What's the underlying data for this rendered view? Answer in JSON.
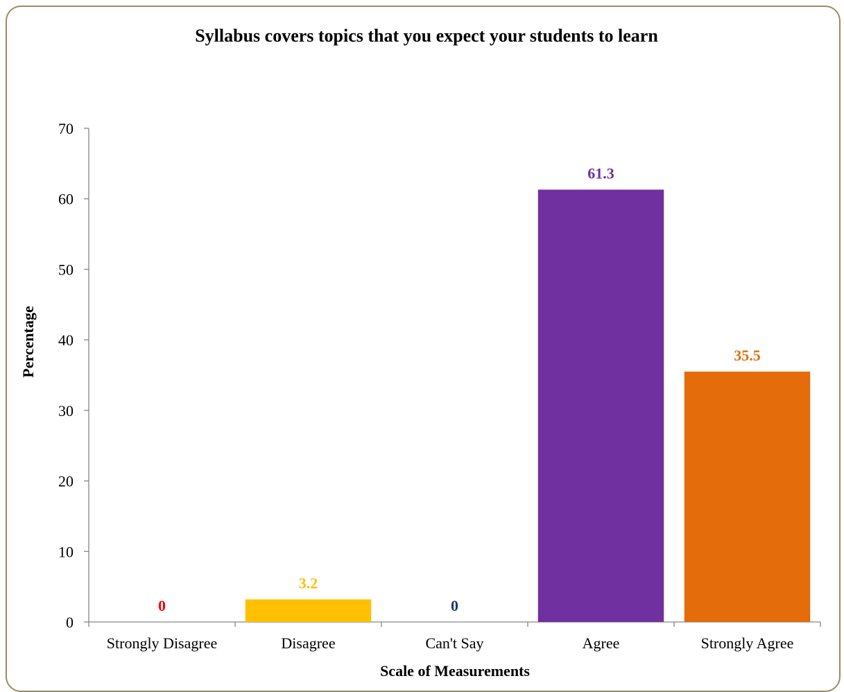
{
  "chart_data": {
    "type": "bar",
    "title": "Syllabus covers topics that you expect your students to learn",
    "xlabel": "Scale of Measurements",
    "ylabel": "Percentage",
    "categories": [
      "Strongly Disagree",
      "Disagree",
      "Can't Say",
      "Agree",
      "Strongly Agree"
    ],
    "values": [
      0,
      3.2,
      0,
      61.3,
      35.5
    ],
    "data_labels": [
      "0",
      "3.2",
      "0",
      "61.3",
      "35.5"
    ],
    "colors": [
      "#ff0000",
      "#ffc000",
      "#1f3864",
      "#7030a0",
      "#e46c0a"
    ],
    "ylim": [
      0,
      70
    ],
    "yticks": [
      0,
      10,
      20,
      30,
      40,
      50,
      60,
      70
    ],
    "grid": false,
    "legend": "none"
  }
}
